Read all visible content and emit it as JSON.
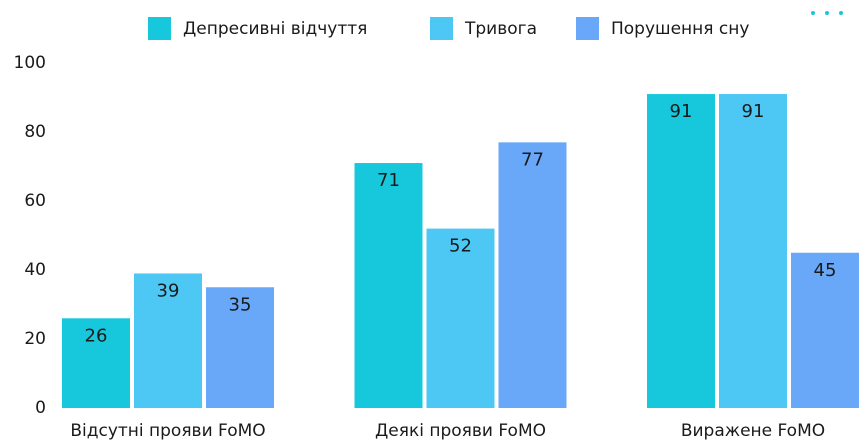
{
  "chart_data": {
    "type": "bar",
    "categories": [
      "Відсутні прояви FoMO",
      "Деякі прояви FoMO",
      "Виражене FoMO"
    ],
    "series": [
      {
        "name": "Депресивні відчуття",
        "color": "#17c8dc",
        "values": [
          26,
          71,
          91
        ]
      },
      {
        "name": "Тривога",
        "color": "#4dc8f5",
        "values": [
          39,
          52,
          91
        ]
      },
      {
        "name": "Порушення сну",
        "color": "#69a8f8",
        "values": [
          35,
          77,
          45
        ]
      }
    ],
    "ylim": [
      0,
      100
    ],
    "yticks": [
      0,
      20,
      40,
      60,
      80,
      100
    ],
    "grid": false,
    "legend": "top"
  }
}
